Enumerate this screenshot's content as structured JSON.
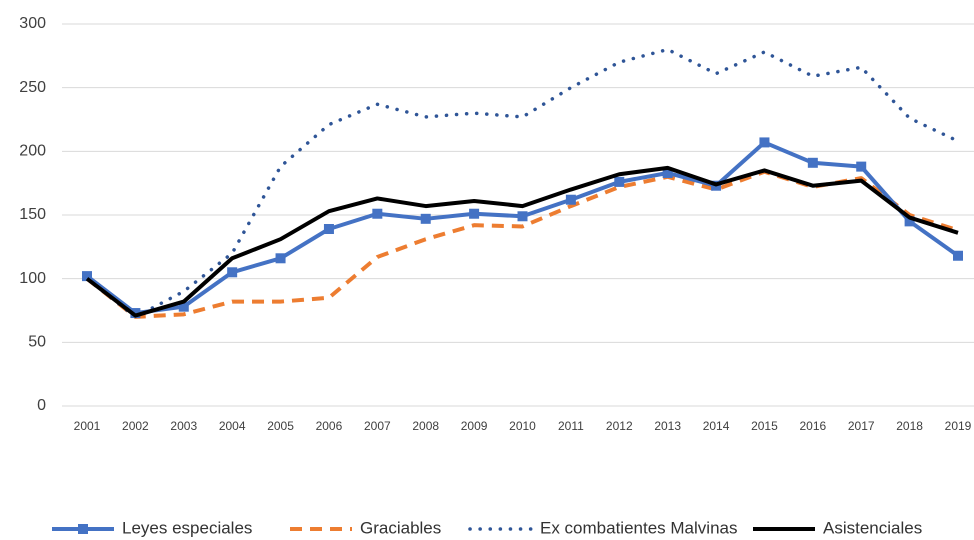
{
  "chart_data": {
    "type": "line",
    "categories": [
      "2001",
      "2002",
      "2003",
      "2004",
      "2005",
      "2006",
      "2007",
      "2008",
      "2009",
      "2010",
      "2011",
      "2012",
      "2013",
      "2014",
      "2015",
      "2016",
      "2017",
      "2018",
      "2019"
    ],
    "ylim": [
      0,
      300
    ],
    "yticks": [
      0,
      50,
      100,
      150,
      200,
      250,
      300
    ],
    "grid": true,
    "legend": "bottom",
    "series": [
      {
        "name": "Leyes especiales",
        "color": "#4472c4",
        "style": "solid-square",
        "values": [
          102,
          73,
          78,
          105,
          116,
          139,
          151,
          147,
          151,
          149,
          162,
          176,
          183,
          173,
          207,
          191,
          188,
          145,
          118
        ]
      },
      {
        "name": "Graciables",
        "color": "#ed7d31",
        "style": "dashed",
        "values": [
          100,
          70,
          72,
          82,
          82,
          85,
          117,
          131,
          142,
          141,
          157,
          172,
          180,
          170,
          184,
          172,
          179,
          150,
          138
        ]
      },
      {
        "name": "Ex combatientes Malvinas",
        "color": "#2f5597",
        "style": "dotted",
        "values": [
          100,
          70,
          90,
          120,
          188,
          221,
          237,
          227,
          230,
          227,
          250,
          270,
          280,
          261,
          278,
          259,
          266,
          226,
          208
        ]
      },
      {
        "name": "Asistenciales",
        "color": "#000000",
        "style": "solid",
        "values": [
          100,
          71,
          82,
          116,
          131,
          153,
          163,
          157,
          161,
          157,
          170,
          182,
          187,
          174,
          185,
          173,
          177,
          148,
          136
        ]
      }
    ]
  }
}
